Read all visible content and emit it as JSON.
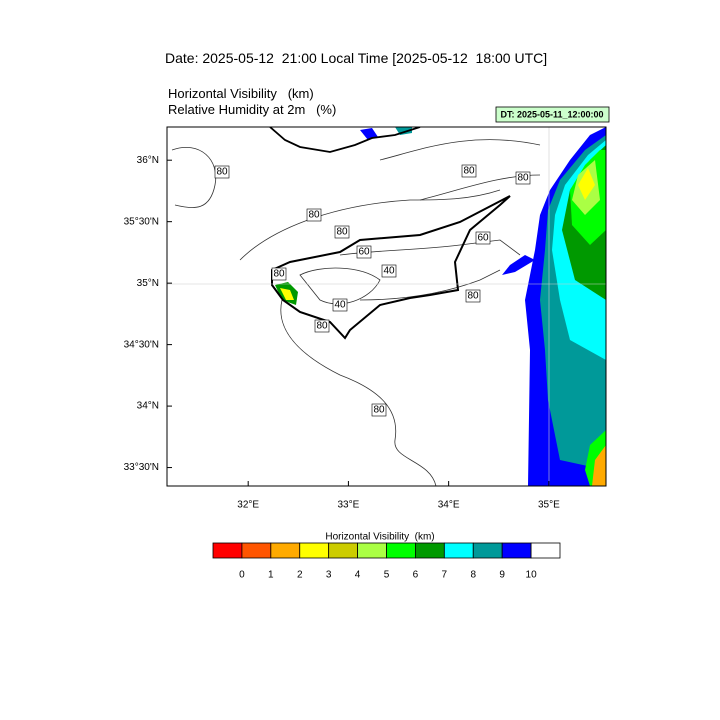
{
  "header": {
    "date_line": "Date: 2025-05-12  21:00 Local Time [2025-05-12  18:00 UTC]",
    "field1": "Horizontal Visibility   (km)",
    "field2": "Relative Humidity at 2m   (%)",
    "dt": "DT: 2025-05-11_12:00:00"
  },
  "map": {
    "xlim": [
      31.19,
      35.57
    ],
    "ylim": [
      33.35,
      36.27
    ],
    "xticks": [
      {
        "value": 32,
        "label": "32°E"
      },
      {
        "value": 33,
        "label": "33°E"
      },
      {
        "value": 34,
        "label": "34°E"
      },
      {
        "value": 35,
        "label": "35°E"
      }
    ],
    "yticks": [
      {
        "value": 33.5,
        "label": "33°30'N"
      },
      {
        "value": 34,
        "label": "34°N"
      },
      {
        "value": 34.5,
        "label": "34°30'N"
      },
      {
        "value": 35,
        "label": "35°N"
      },
      {
        "value": 35.5,
        "label": "35°30'N"
      },
      {
        "value": 36,
        "label": "36°N"
      }
    ],
    "contour_labels": [
      80,
      80,
      80,
      80,
      80,
      60,
      60,
      40,
      80,
      40,
      80,
      80,
      80
    ]
  },
  "colorbar": {
    "title": "Horizontal Visibility  (km)",
    "colors": [
      "#ff0000",
      "#ff5500",
      "#ffaa00",
      "#ffff00",
      "#cccc00",
      "#aaff44",
      "#00ff00",
      "#009900",
      "#00ffff",
      "#009999",
      "#0000ff",
      "#ffffff"
    ],
    "labels": [
      0,
      1,
      2,
      3,
      4,
      5,
      6,
      7,
      8,
      9,
      10
    ]
  }
}
